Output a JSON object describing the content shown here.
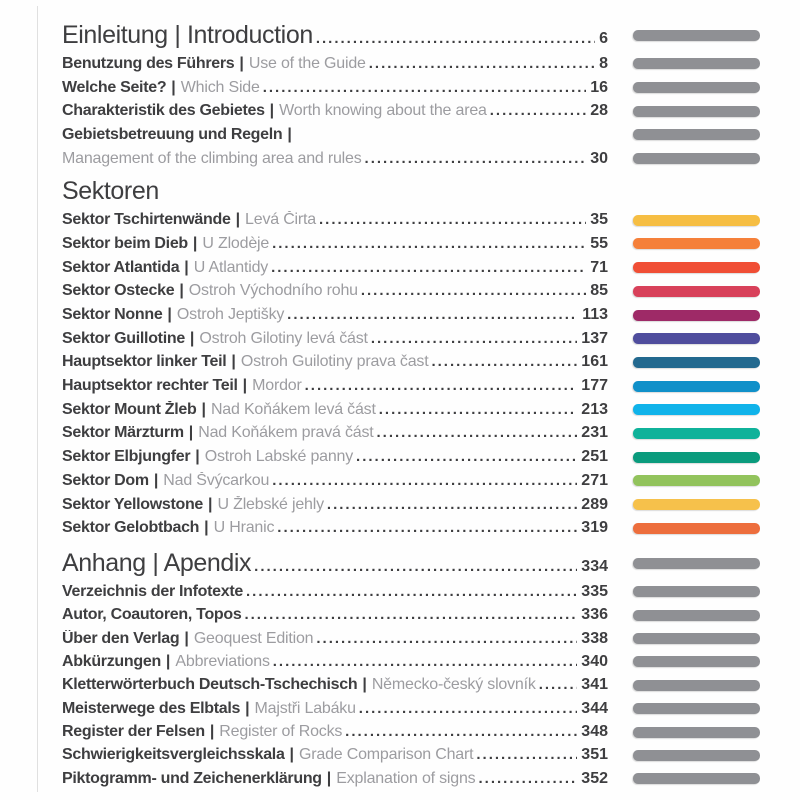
{
  "colors": {
    "text_dark": "#3E3E40",
    "text_light": "#9C9CA0",
    "bar_gray": "#8F9094",
    "page_background": "#FEFEFE",
    "left_rule": "#E0E0E0"
  },
  "leader_dot": ".",
  "sections": [
    {
      "id": "einleitung",
      "heading": {
        "text": "Einleitung | Introduction",
        "page": "6",
        "dots": true,
        "bar": "#8F9094"
      },
      "entries": [
        {
          "de": "Benutzung des Führers",
          "sep": "|",
          "en": "Use of the Guide",
          "page": "8",
          "dots": true,
          "bar": "#8F9094"
        },
        {
          "de": "Welche Seite?",
          "sep": "|",
          "en": "Which Side",
          "page": "16",
          "dots": true,
          "bar": "#8F9094"
        },
        {
          "de": "Charakteristik des Gebietes",
          "sep": "|",
          "en": "Worth knowing about the area",
          "page": "28",
          "dots": true,
          "bar": "#8F9094"
        },
        {
          "de": "Gebietsbetreuung und Regeln",
          "sep": "|",
          "en": "",
          "page": "",
          "dots": false,
          "bar": "#8F9094"
        },
        {
          "de": "",
          "sep": "",
          "en": "Management of the climbing area and rules",
          "page": "30",
          "dots": true,
          "bar": "#8F9094"
        }
      ]
    },
    {
      "id": "sektoren",
      "heading": {
        "text": "Sektoren",
        "page": "",
        "dots": false,
        "bar": ""
      },
      "entries": [
        {
          "de": "Sektor Tschirtenwände",
          "sep": "|",
          "en": "Levá Čirta",
          "page": "35",
          "dots": true,
          "bar": "#F6BE43"
        },
        {
          "de": "Sektor beim Dieb",
          "sep": "|",
          "en": "U Zlodèje",
          "page": "55",
          "dots": true,
          "bar": "#F5803A"
        },
        {
          "de": "Sektor Atlantida",
          "sep": "|",
          "en": "U Atlantidy",
          "page": "71",
          "dots": true,
          "bar": "#F04E35"
        },
        {
          "de": "Sektor Ostecke",
          "sep": "|",
          "en": "Ostroh Východního rohu",
          "page": "85",
          "dots": true,
          "bar": "#D8415A"
        },
        {
          "de": "Sektor Nonne",
          "sep": "|",
          "en": "Ostroh Jeptišky",
          "page": "113",
          "dots": true,
          "bar": "#9E2A67"
        },
        {
          "de": "Sektor Guillotine",
          "sep": "|",
          "en": "Ostroh Gilotiny levá část",
          "page": "137",
          "dots": true,
          "bar": "#4F4D9D"
        },
        {
          "de": "Hauptsektor linker Teil",
          "sep": "|",
          "en": "Ostroh Guilotiny prava čast",
          "page": "161",
          "dots": true,
          "bar": "#23698F"
        },
        {
          "de": "Hauptsektor rechter Teil",
          "sep": "|",
          "en": "Mordor",
          "page": "177",
          "dots": true,
          "bar": "#1090C9"
        },
        {
          "de": "Sektor Mount Žleb",
          "sep": "|",
          "en": "Nad Koňákem levá část",
          "page": "213",
          "dots": true,
          "bar": "#10B3EA"
        },
        {
          "de": "Sektor Märzturm",
          "sep": "|",
          "en": "Nad Koňákem pravá část",
          "page": "231",
          "dots": true,
          "bar": "#0FB29A"
        },
        {
          "de": "Sektor Elbjungfer",
          "sep": "|",
          "en": "Ostroh Labské panny",
          "page": "251",
          "dots": true,
          "bar": "#0A9B7D"
        },
        {
          "de": "Sektor Dom",
          "sep": "|",
          "en": "Nad Švýcarkou",
          "page": "271",
          "dots": true,
          "bar": "#92C35C"
        },
        {
          "de": "Sektor Yellowstone",
          "sep": "|",
          "en": "U Žlebské jehly",
          "page": "289",
          "dots": true,
          "bar": "#F6C14B"
        },
        {
          "de": "Sektor Gelobtbach",
          "sep": "|",
          "en": "U Hranic",
          "page": "319",
          "dots": true,
          "bar": "#ED6E3D"
        }
      ]
    },
    {
      "id": "anhang",
      "heading": {
        "text": "Anhang | Apendix",
        "page": "334",
        "dots": true,
        "bar": "#8F9094"
      },
      "entries": [
        {
          "de": "Verzeichnis der Infotexte",
          "sep": "",
          "en": "",
          "page": "335",
          "dots": true,
          "bar": "#8F9094"
        },
        {
          "de": "Autor, Coautoren, Topos",
          "sep": "",
          "en": "",
          "page": "336",
          "dots": true,
          "bar": "#8F9094"
        },
        {
          "de": "Über den Verlag",
          "sep": "|",
          "en": "Geoquest Edition",
          "page": "338",
          "dots": true,
          "bar": "#8F9094"
        },
        {
          "de": "Abkürzungen",
          "sep": "|",
          "en": "Abbreviations",
          "page": "340",
          "dots": true,
          "bar": "#8F9094"
        },
        {
          "de": "Kletterwörterbuch Deutsch-Tschechisch",
          "sep": "|",
          "en": "Německo-český slovník",
          "page": "341",
          "dots": true,
          "bar": "#8F9094"
        },
        {
          "de": "Meisterwege des Elbtals",
          "sep": "|",
          "en": "Majstři Labáku",
          "page": "344",
          "dots": true,
          "bar": "#8F9094"
        },
        {
          "de": "Register der Felsen",
          "sep": "|",
          "en": "Register of Rocks",
          "page": "348",
          "dots": true,
          "bar": "#8F9094"
        },
        {
          "de": "Schwierigkeitsvergleichsskala",
          "sep": "|",
          "en": "Grade Comparison Chart",
          "page": "351",
          "dots": true,
          "bar": "#8F9094"
        },
        {
          "de": "Piktogramm- und Zeichenerklärung",
          "sep": "|",
          "en": "Explanation of signs",
          "page": "352",
          "dots": true,
          "bar": "#8F9094"
        }
      ]
    }
  ]
}
